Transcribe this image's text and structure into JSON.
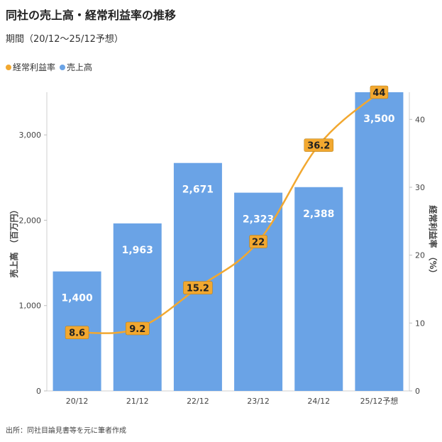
{
  "title": "同社の売上高・経常利益率の推移",
  "subtitle": "期間（20/12〜25/12予想）",
  "source": "出所：同社目論見書等を元に筆者作成",
  "colors": {
    "bar": "#6aa3e6",
    "line": "#f2a830",
    "grid": "#e6e6e6"
  },
  "chart_data": {
    "type": "bar",
    "categories": [
      "20/12",
      "21/12",
      "22/12",
      "23/12",
      "24/12",
      "25/12予想"
    ],
    "series": [
      {
        "name": "売上高",
        "type": "bar",
        "axis": "left",
        "values": [
          1400,
          1963,
          2671,
          2323,
          2388,
          3500
        ],
        "labels": [
          "1,400",
          "1,963",
          "2,671",
          "2,323",
          "2,388",
          "3,500"
        ]
      },
      {
        "name": "経常利益率",
        "type": "line",
        "axis": "right",
        "values": [
          8.6,
          9.2,
          15.2,
          22,
          36.2,
          44
        ],
        "labels": [
          "8.6",
          "9.2",
          "15.2",
          "22",
          "36.2",
          "44"
        ]
      }
    ],
    "legend": {
      "position": "top-left",
      "items": [
        "経常利益率",
        "売上高"
      ]
    },
    "ylabel_left": "売上高　（百万円）",
    "ylabel_right": "経常利益率　（%）",
    "yticks_left": [
      "0",
      "1,000",
      "2,000",
      "3,000"
    ],
    "yticks_right": [
      "0",
      "10",
      "20",
      "30",
      "40"
    ],
    "ylim_left": [
      0,
      3500
    ],
    "ylim_right": [
      0,
      44
    ],
    "grid": false
  }
}
